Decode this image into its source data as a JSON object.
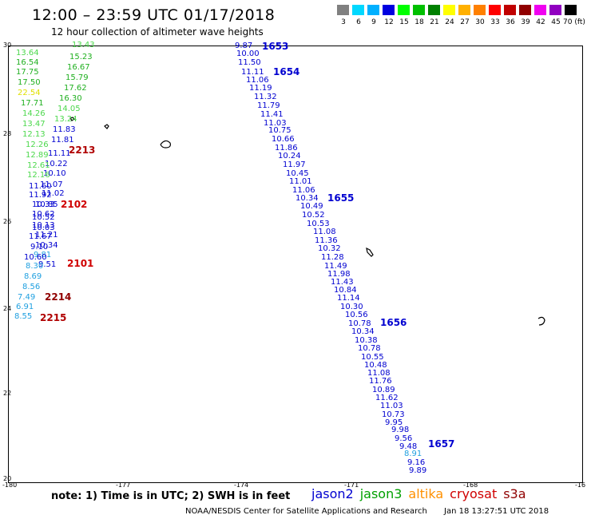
{
  "title": "12:00 – 23:59 UTC 01/17/2018",
  "subtitle": "12 hour collection of altimeter wave heights",
  "scale": {
    "labels": [
      "3",
      "6",
      "9",
      "12",
      "15",
      "18",
      "21",
      "24",
      "27",
      "30",
      "33",
      "36",
      "39",
      "42",
      "45",
      "70 (ft)"
    ],
    "colors": [
      "#808080",
      "#00d8ff",
      "#00b0ff",
      "#0000e0",
      "#00ff00",
      "#00c000",
      "#008000",
      "#ffff00",
      "#ffb000",
      "#ff8000",
      "#ff0000",
      "#c00000",
      "#900000",
      "#f000f0",
      "#9000c0",
      "#000000"
    ]
  },
  "map": {
    "lat_labels": [
      "30",
      "28",
      "26",
      "24",
      "22",
      "20"
    ],
    "lon_labels": [
      "-180",
      "-177",
      "-174",
      "-171",
      "-168",
      "-16"
    ]
  },
  "points": [
    {
      "t": "13.43",
      "c": "#4cd84c"
    },
    {
      "t": "13.64",
      "c": "#4cd84c"
    },
    {
      "t": "15.23",
      "c": "#20b020"
    },
    {
      "t": "16.54",
      "c": "#20b020"
    },
    {
      "t": "16.67",
      "c": "#20b020"
    },
    {
      "t": "17.75",
      "c": "#20b020"
    },
    {
      "t": "15.79",
      "c": "#20b020"
    },
    {
      "t": "17.50",
      "c": "#20b020"
    },
    {
      "t": "17.62",
      "c": "#20b020"
    },
    {
      "t": "22.54",
      "c": "#e0e000"
    },
    {
      "t": "16.30",
      "c": "#20b020"
    },
    {
      "t": "17.71",
      "c": "#20b020"
    },
    {
      "t": "14.05",
      "c": "#4cd84c"
    },
    {
      "t": "14.26",
      "c": "#4cd84c"
    },
    {
      "t": "13.24",
      "c": "#4cd84c"
    },
    {
      "t": "13.47",
      "c": "#4cd84c"
    },
    {
      "t": "11.83",
      "c": "#0000d0"
    },
    {
      "t": "12.13",
      "c": "#4cd84c"
    },
    {
      "t": "11.81",
      "c": "#0000d0"
    },
    {
      "t": "12.26",
      "c": "#4cd84c"
    },
    {
      "t": "11.11",
      "c": "#0000d0"
    },
    {
      "t": "12.89",
      "c": "#4cd84c"
    },
    {
      "t": "10.22",
      "c": "#0000d0"
    },
    {
      "t": "12.61",
      "c": "#4cd84c"
    },
    {
      "t": "10.10",
      "c": "#0000d0"
    },
    {
      "t": "12.16",
      "c": "#4cd84c"
    },
    {
      "t": "11.07",
      "c": "#0000d0"
    },
    {
      "t": "11.60",
      "c": "#0000d0"
    },
    {
      "t": "11.02",
      "c": "#0000d0"
    },
    {
      "t": "11.92",
      "c": "#0000d0"
    },
    {
      "t": "10.85",
      "c": "#0000d0"
    },
    {
      "t": "10.33",
      "c": "#0000d0"
    },
    {
      "t": "10.62",
      "c": "#0000d0"
    },
    {
      "t": "10.52",
      "c": "#0000d0"
    },
    {
      "t": "10.13",
      "c": "#0000d0"
    },
    {
      "t": "10.03",
      "c": "#0000d0"
    },
    {
      "t": "11.21",
      "c": "#0000d0"
    },
    {
      "t": "11.67",
      "c": "#0000d0"
    },
    {
      "t": "10.34",
      "c": "#0000d0"
    },
    {
      "t": "9.10",
      "c": "#0000d0"
    },
    {
      "t": "9.81",
      "c": "#20a0e0"
    },
    {
      "t": "10.60",
      "c": "#0000d0"
    },
    {
      "t": "9.51",
      "c": "#0000d0"
    },
    {
      "t": "8.30",
      "c": "#20a0e0"
    },
    {
      "t": "8.69",
      "c": "#20a0e0"
    },
    {
      "t": "8.56",
      "c": "#20a0e0"
    },
    {
      "t": "7.49",
      "c": "#20a0e0"
    },
    {
      "t": "6.91",
      "c": "#20a0e0"
    },
    {
      "t": "8.55",
      "c": "#20a0e0"
    },
    {
      "t": "9.87",
      "c": "#0000d0"
    },
    {
      "t": "10.00",
      "c": "#0000d0"
    },
    {
      "t": "11.50",
      "c": "#0000d0"
    },
    {
      "t": "11.11",
      "c": "#0000d0"
    },
    {
      "t": "11.06",
      "c": "#0000d0"
    },
    {
      "t": "11.19",
      "c": "#0000d0"
    },
    {
      "t": "11.32",
      "c": "#0000d0"
    },
    {
      "t": "11.79",
      "c": "#0000d0"
    },
    {
      "t": "11.41",
      "c": "#0000d0"
    },
    {
      "t": "11.03",
      "c": "#0000d0"
    },
    {
      "t": "10.75",
      "c": "#0000d0"
    },
    {
      "t": "10.66",
      "c": "#0000d0"
    },
    {
      "t": "11.86",
      "c": "#0000d0"
    },
    {
      "t": "10.24",
      "c": "#0000d0"
    },
    {
      "t": "11.97",
      "c": "#0000d0"
    },
    {
      "t": "10.45",
      "c": "#0000d0"
    },
    {
      "t": "11.01",
      "c": "#0000d0"
    },
    {
      "t": "11.06",
      "c": "#0000d0"
    },
    {
      "t": "10.34",
      "c": "#0000d0"
    },
    {
      "t": "10.49",
      "c": "#0000d0"
    },
    {
      "t": "10.52",
      "c": "#0000d0"
    },
    {
      "t": "10.53",
      "c": "#0000d0"
    },
    {
      "t": "11.08",
      "c": "#0000d0"
    },
    {
      "t": "11.36",
      "c": "#0000d0"
    },
    {
      "t": "10.32",
      "c": "#0000d0"
    },
    {
      "t": "11.28",
      "c": "#0000d0"
    },
    {
      "t": "11.49",
      "c": "#0000d0"
    },
    {
      "t": "11.98",
      "c": "#0000d0"
    },
    {
      "t": "11.43",
      "c": "#0000d0"
    },
    {
      "t": "10.84",
      "c": "#0000d0"
    },
    {
      "t": "11.14",
      "c": "#0000d0"
    },
    {
      "t": "10.30",
      "c": "#0000d0"
    },
    {
      "t": "10.56",
      "c": "#0000d0"
    },
    {
      "t": "10.78",
      "c": "#0000d0"
    },
    {
      "t": "10.34",
      "c": "#0000d0"
    },
    {
      "t": "10.38",
      "c": "#0000d0"
    },
    {
      "t": "10.78",
      "c": "#0000d0"
    },
    {
      "t": "10.55",
      "c": "#0000d0"
    },
    {
      "t": "10.48",
      "c": "#0000d0"
    },
    {
      "t": "11.08",
      "c": "#0000d0"
    },
    {
      "t": "11.76",
      "c": "#0000d0"
    },
    {
      "t": "10.89",
      "c": "#0000d0"
    },
    {
      "t": "11.62",
      "c": "#0000d0"
    },
    {
      "t": "11.03",
      "c": "#0000d0"
    },
    {
      "t": "10.73",
      "c": "#0000d0"
    },
    {
      "t": "9.95",
      "c": "#0000d0"
    },
    {
      "t": "9.98",
      "c": "#0000d0"
    },
    {
      "t": "9.56",
      "c": "#0000d0"
    },
    {
      "t": "9.48",
      "c": "#0000d0"
    },
    {
      "t": "8.91",
      "c": "#20a0e0"
    },
    {
      "t": "9.16",
      "c": "#0000d0"
    },
    {
      "t": "9.89",
      "c": "#0000d0"
    }
  ],
  "pass_labels": [
    {
      "t": "1653",
      "c": "#0000d0"
    },
    {
      "t": "1654",
      "c": "#0000d0"
    },
    {
      "t": "1655",
      "c": "#0000d0"
    },
    {
      "t": "1656",
      "c": "#0000d0"
    },
    {
      "t": "1657",
      "c": "#0000d0"
    },
    {
      "t": "2213",
      "c": "#b00000"
    },
    {
      "t": "2102",
      "c": "#d00000"
    },
    {
      "t": "2101",
      "c": "#d00000"
    },
    {
      "t": "2214",
      "c": "#900000"
    },
    {
      "t": "2215",
      "c": "#b00000"
    }
  ],
  "note": "note: 1) Time is in UTC; 2) SWH is in feet",
  "satellites": [
    {
      "name": "jason2",
      "color": "#0000d0"
    },
    {
      "name": "jason3",
      "color": "#00a000"
    },
    {
      "name": "altika",
      "color": "#ff9000"
    },
    {
      "name": "cryosat",
      "color": "#d00000"
    },
    {
      "name": "s3a",
      "color": "#900000"
    }
  ],
  "footer": {
    "org": "NOAA/NESDIS Center for Satellite Applications and Research",
    "timestamp": "Jan 18 13:27:51 UTC 2018"
  }
}
